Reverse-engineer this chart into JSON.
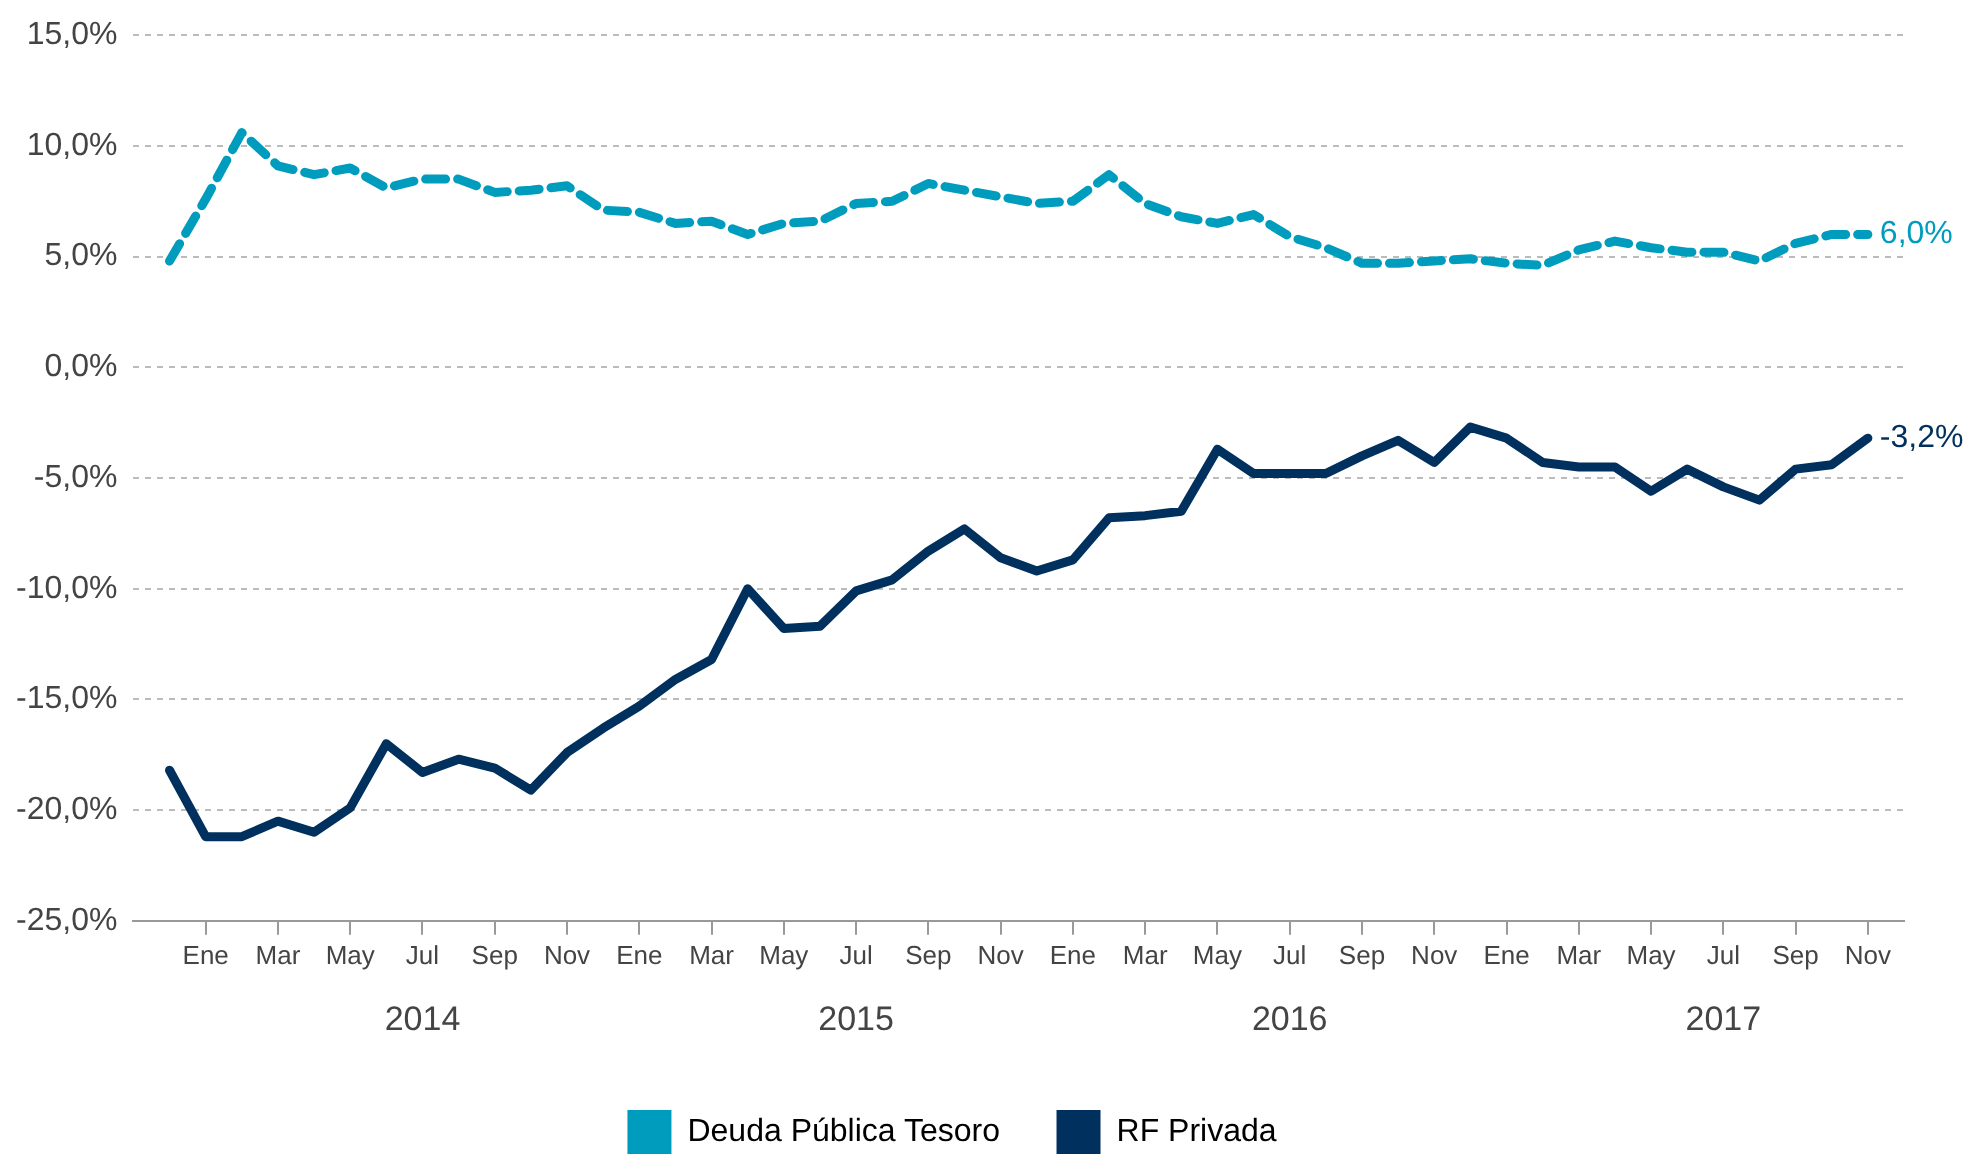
{
  "chart_data": {
    "type": "line",
    "x": [
      "2013-12",
      "2014-01",
      "2014-02",
      "2014-03",
      "2014-04",
      "2014-05",
      "2014-06",
      "2014-07",
      "2014-08",
      "2014-09",
      "2014-10",
      "2014-11",
      "2014-12",
      "2015-01",
      "2015-02",
      "2015-03",
      "2015-04",
      "2015-05",
      "2015-06",
      "2015-07",
      "2015-08",
      "2015-09",
      "2015-10",
      "2015-11",
      "2015-12",
      "2016-01",
      "2016-02",
      "2016-03",
      "2016-04",
      "2016-05",
      "2016-06",
      "2016-07",
      "2016-08",
      "2016-09",
      "2016-10",
      "2016-11",
      "2016-12",
      "2017-01",
      "2017-02",
      "2017-03",
      "2017-04",
      "2017-05",
      "2017-06",
      "2017-07",
      "2017-08",
      "2017-09",
      "2017-10",
      "2017-11"
    ],
    "series": [
      {
        "name": "Deuda Pública Tesoro",
        "color": "#009cbd",
        "line_style": "dashed",
        "values": [
          4.8,
          7.6,
          10.6,
          9.1,
          8.7,
          9.0,
          8.1,
          8.5,
          8.5,
          7.9,
          8.0,
          8.2,
          7.1,
          7.0,
          6.5,
          6.6,
          6.0,
          6.5,
          6.6,
          7.4,
          7.5,
          8.3,
          8.0,
          7.7,
          7.4,
          7.5,
          8.7,
          7.4,
          6.8,
          6.5,
          6.9,
          5.9,
          5.4,
          4.7,
          4.7,
          4.8,
          4.9,
          4.7,
          4.6,
          5.3,
          5.7,
          5.4,
          5.2,
          5.2,
          4.8,
          5.6,
          6.0,
          6.0
        ],
        "value_labels": [
          null,
          null,
          null,
          null,
          null,
          null,
          null,
          null,
          null,
          null,
          null,
          null,
          null,
          null,
          null,
          null,
          null,
          null,
          null,
          null,
          null,
          null,
          null,
          null,
          null,
          null,
          null,
          null,
          null,
          null,
          null,
          null,
          null,
          null,
          null,
          null,
          null,
          null,
          null,
          null,
          null,
          null,
          null,
          null,
          null,
          null,
          null,
          "6,0%"
        ]
      },
      {
        "name": "RF Privada",
        "color": "#00305e",
        "line_style": "solid",
        "values": [
          -18.2,
          -21.2,
          -21.2,
          -20.5,
          -21.0,
          -19.9,
          -17.0,
          -18.3,
          -17.7,
          -18.1,
          -19.1,
          -17.4,
          -16.3,
          -15.3,
          -14.1,
          -13.2,
          -10.0,
          -11.8,
          -11.7,
          -10.1,
          -9.6,
          -8.3,
          -7.3,
          -8.6,
          -9.2,
          -8.7,
          -6.8,
          -6.7,
          -6.5,
          -3.7,
          -4.8,
          -4.8,
          -4.8,
          -4.0,
          -3.3,
          -4.3,
          -2.7,
          -3.2,
          -4.3,
          -4.5,
          -4.5,
          -5.6,
          -4.6,
          -5.4,
          -6.0,
          -4.6,
          -4.4,
          -3.2
        ],
        "value_labels": [
          null,
          null,
          null,
          null,
          null,
          null,
          null,
          null,
          null,
          null,
          null,
          null,
          null,
          null,
          null,
          null,
          null,
          null,
          null,
          null,
          null,
          null,
          null,
          null,
          null,
          null,
          null,
          null,
          null,
          null,
          null,
          null,
          null,
          null,
          null,
          null,
          null,
          null,
          null,
          null,
          null,
          null,
          null,
          null,
          null,
          null,
          null,
          "-3,2%"
        ]
      }
    ],
    "xlim": [
      "2013-11",
      "2017-12"
    ],
    "xticks": [
      {
        "value": "2014-01",
        "label": "Ene"
      },
      {
        "value": "2014-03",
        "label": "Mar"
      },
      {
        "value": "2014-05",
        "label": "May"
      },
      {
        "value": "2014-07",
        "label": "Jul"
      },
      {
        "value": "2014-09",
        "label": "Sep"
      },
      {
        "value": "2014-11",
        "label": "Nov"
      },
      {
        "value": "2015-01",
        "label": "Ene"
      },
      {
        "value": "2015-03",
        "label": "Mar"
      },
      {
        "value": "2015-05",
        "label": "May"
      },
      {
        "value": "2015-07",
        "label": "Jul"
      },
      {
        "value": "2015-09",
        "label": "Sep"
      },
      {
        "value": "2015-11",
        "label": "Nov"
      },
      {
        "value": "2016-01",
        "label": "Ene"
      },
      {
        "value": "2016-03",
        "label": "Mar"
      },
      {
        "value": "2016-05",
        "label": "May"
      },
      {
        "value": "2016-07",
        "label": "Jul"
      },
      {
        "value": "2016-09",
        "label": "Sep"
      },
      {
        "value": "2016-11",
        "label": "Nov"
      },
      {
        "value": "2017-01",
        "label": "Ene"
      },
      {
        "value": "2017-03",
        "label": "Mar"
      },
      {
        "value": "2017-05",
        "label": "May"
      },
      {
        "value": "2017-07",
        "label": "Jul"
      },
      {
        "value": "2017-09",
        "label": "Sep"
      },
      {
        "value": "2017-11",
        "label": "Nov"
      }
    ],
    "ylim": [
      -25,
      15
    ],
    "yticks": [
      {
        "value": -25,
        "label": "-25,0%"
      },
      {
        "value": -20,
        "label": "-20,0%"
      },
      {
        "value": -15,
        "label": "-15,0%"
      },
      {
        "value": -10,
        "label": "-10,0%"
      },
      {
        "value": -5,
        "label": "-5,0%"
      },
      {
        "value": 0,
        "label": "0,0%"
      },
      {
        "value": 5,
        "label": "5,0%"
      },
      {
        "value": 10,
        "label": "10,0%"
      },
      {
        "value": 15,
        "label": "15,0%"
      }
    ],
    "annotations": [
      "2014",
      "2015",
      "2016",
      "2017"
    ],
    "grid": "y",
    "legend": "bottom",
    "marker": "none"
  }
}
